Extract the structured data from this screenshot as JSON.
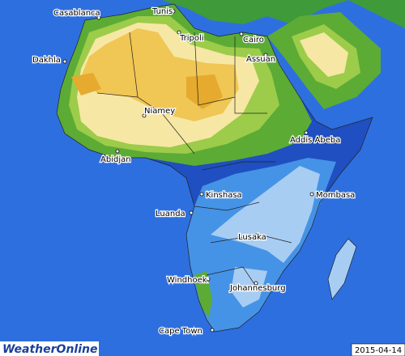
{
  "map": {
    "cities": [
      "Casablanca",
      "Tunis",
      "Tripoli",
      "Cairo",
      "Assuan",
      "Dakhla",
      "Niamey",
      "Abidjan",
      "Addis Abeba",
      "Kinshasa",
      "Mombasa",
      "Luanda",
      "Lusaka",
      "Windhoek",
      "Johannesburg",
      "Cape Town"
    ]
  },
  "logo": "WeatherOnline",
  "date": "2015-04-14"
}
